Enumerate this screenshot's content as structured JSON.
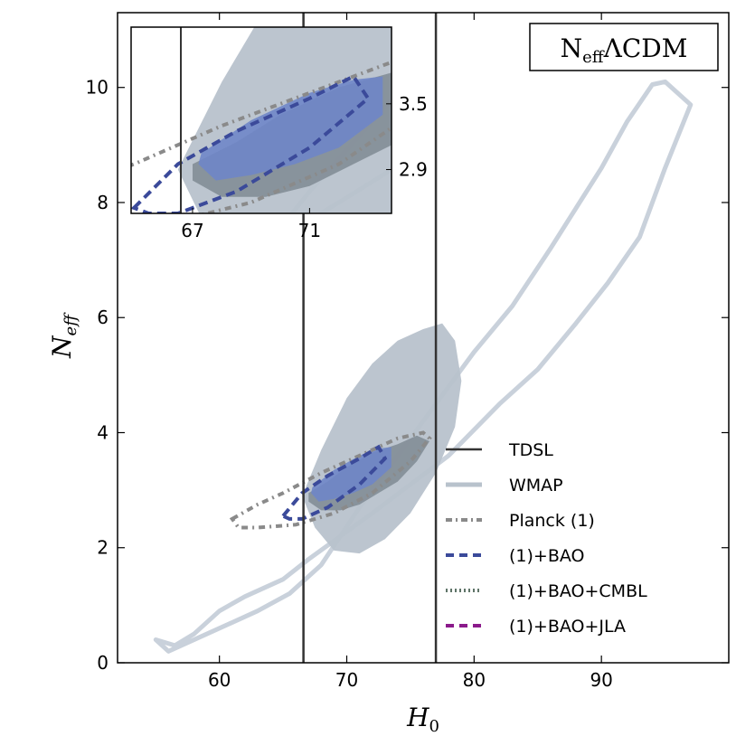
{
  "chart_data": {
    "type": "contour",
    "title": "N_eff ΛCDM",
    "model_label": {
      "main": "N",
      "sub": "eff",
      "rest": "ΛCDM"
    },
    "xlabel": {
      "main": "H",
      "sub": "0"
    },
    "ylabel": {
      "main": "N",
      "sub": "eff"
    },
    "xlim": [
      52,
      100
    ],
    "ylim": [
      0,
      11.3
    ],
    "xticks": [
      60,
      70,
      80,
      90
    ],
    "yticks": [
      0,
      2,
      4,
      6,
      8,
      10
    ],
    "vlines": [
      66.6,
      77.0
    ],
    "colors": {
      "tdsl": "#333333",
      "wmap": "#b8c2cc",
      "wmap_outer": "#c9d1db",
      "planck": "#8a8a8a",
      "planck_fill": "#7f8a93",
      "bao": "#3b4a9a",
      "bao_fill": "#6f86c8",
      "cmbl": "#5f7468",
      "jla": "#8b1a8b"
    },
    "legend": [
      {
        "label": "TDSL",
        "style": "solid-line"
      },
      {
        "label": "WMAP",
        "style": "thick-line"
      },
      {
        "label": "Planck (1)",
        "style": "dashdot"
      },
      {
        "label": "(1)+BAO",
        "style": "dashed"
      },
      {
        "label": "(1)+BAO+CMBL",
        "style": "dotted"
      },
      {
        "label": "(1)+BAO+JLA",
        "style": "dashed"
      }
    ],
    "series": [
      {
        "name": "WMAP outer",
        "points": [
          [
            55,
            0.4
          ],
          [
            56,
            0.2
          ],
          [
            59,
            0.5
          ],
          [
            63,
            0.9
          ],
          [
            65.5,
            1.2
          ],
          [
            68,
            1.7
          ],
          [
            71,
            2.7
          ],
          [
            73,
            3.3
          ],
          [
            76,
            4.2
          ],
          [
            80,
            5.4
          ],
          [
            83,
            6.2
          ],
          [
            86,
            7.2
          ],
          [
            88,
            7.9
          ],
          [
            90,
            8.6
          ],
          [
            92,
            9.4
          ],
          [
            94,
            10.05
          ],
          [
            95,
            10.1
          ],
          [
            97,
            9.7
          ],
          [
            95,
            8.6
          ],
          [
            93,
            7.4
          ],
          [
            90.5,
            6.6
          ],
          [
            88,
            5.9
          ],
          [
            85,
            5.1
          ],
          [
            82,
            4.5
          ],
          [
            78,
            3.6
          ],
          [
            75,
            3.1
          ],
          [
            72,
            2.6
          ],
          [
            69.5,
            2.2
          ],
          [
            67,
            1.8
          ],
          [
            65,
            1.45
          ],
          [
            62,
            1.15
          ],
          [
            60,
            0.9
          ],
          [
            58,
            0.5
          ],
          [
            56.5,
            0.3
          ],
          [
            55,
            0.4
          ]
        ]
      },
      {
        "name": "WMAP filled",
        "points": [
          [
            66.5,
            2.9
          ],
          [
            68,
            3.7
          ],
          [
            70,
            4.6
          ],
          [
            72,
            5.2
          ],
          [
            74,
            5.6
          ],
          [
            76,
            5.8
          ],
          [
            77.5,
            5.9
          ],
          [
            78.5,
            5.6
          ],
          [
            79,
            4.9
          ],
          [
            78.5,
            4.1
          ],
          [
            77,
            3.3
          ],
          [
            75,
            2.6
          ],
          [
            73,
            2.15
          ],
          [
            71,
            1.9
          ],
          [
            69,
            1.95
          ],
          [
            67.5,
            2.35
          ],
          [
            66.5,
            2.9
          ]
        ]
      },
      {
        "name": "Planck filled",
        "points": [
          [
            67,
            2.95
          ],
          [
            68.5,
            3.15
          ],
          [
            70,
            3.4
          ],
          [
            72,
            3.65
          ],
          [
            74,
            3.8
          ],
          [
            75.5,
            3.95
          ],
          [
            76.5,
            3.85
          ],
          [
            75.5,
            3.5
          ],
          [
            74,
            3.15
          ],
          [
            72.5,
            2.95
          ],
          [
            71,
            2.75
          ],
          [
            69.5,
            2.65
          ],
          [
            68,
            2.65
          ],
          [
            67,
            2.8
          ],
          [
            67,
            2.95
          ]
        ]
      },
      {
        "name": "BAO filled",
        "points": [
          [
            67.3,
            3.05
          ],
          [
            69,
            3.35
          ],
          [
            71,
            3.6
          ],
          [
            72.5,
            3.72
          ],
          [
            73.5,
            3.75
          ],
          [
            73.5,
            3.4
          ],
          [
            72,
            3.1
          ],
          [
            70.5,
            2.95
          ],
          [
            69,
            2.85
          ],
          [
            67.8,
            2.8
          ],
          [
            67.2,
            2.95
          ],
          [
            67.3,
            3.05
          ]
        ]
      },
      {
        "name": "Planck (1)",
        "points": [
          [
            61,
            2.5
          ],
          [
            63,
            2.75
          ],
          [
            65,
            2.95
          ],
          [
            68,
            3.3
          ],
          [
            71,
            3.6
          ],
          [
            74,
            3.9
          ],
          [
            76,
            4.0
          ],
          [
            76.5,
            3.9
          ],
          [
            75,
            3.5
          ],
          [
            72,
            2.95
          ],
          [
            69,
            2.6
          ],
          [
            66,
            2.4
          ],
          [
            63,
            2.35
          ],
          [
            61.5,
            2.35
          ],
          [
            61,
            2.5
          ]
        ]
      },
      {
        "name": "(1)+BAO",
        "points": [
          [
            65,
            2.55
          ],
          [
            66.5,
            2.95
          ],
          [
            68.5,
            3.25
          ],
          [
            71,
            3.55
          ],
          [
            72.5,
            3.75
          ],
          [
            73,
            3.55
          ],
          [
            71,
            3.1
          ],
          [
            68.5,
            2.7
          ],
          [
            66.5,
            2.5
          ],
          [
            65.5,
            2.5
          ],
          [
            65,
            2.55
          ]
        ]
      }
    ],
    "inset": {
      "xlim": [
        64.9,
        73.8
      ],
      "ylim": [
        2.5,
        4.2
      ],
      "xticks": [
        67,
        71
      ],
      "yticks": [
        2.9,
        3.5
      ]
    }
  }
}
